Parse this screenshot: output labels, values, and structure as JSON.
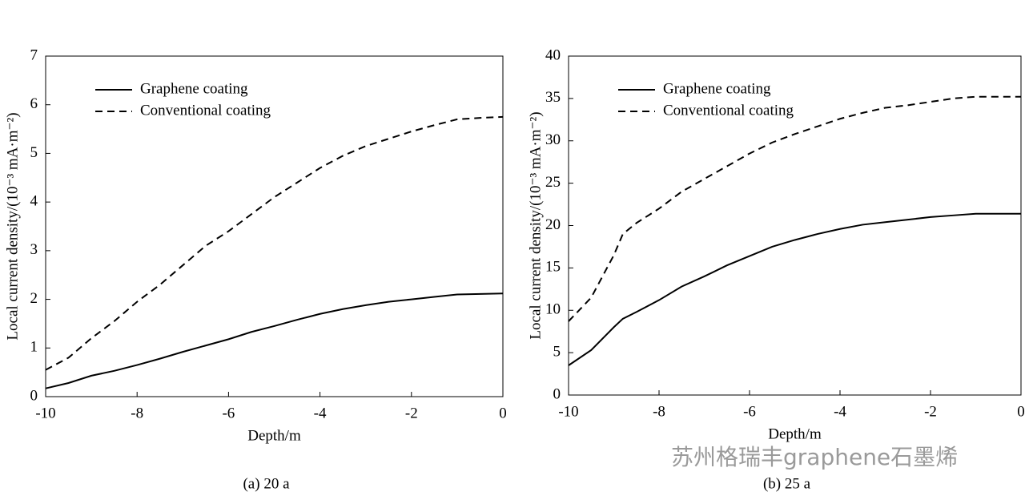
{
  "chart_data": [
    {
      "type": "line",
      "caption": "(a) 20 a",
      "xlabel": "Depth/m",
      "ylabel": "Local current density/(10⁻³ mA·m⁻²)",
      "xlim": [
        -10,
        0
      ],
      "xticks": [
        -10,
        -8,
        -6,
        -4,
        -2,
        0
      ],
      "ylim": [
        0,
        7
      ],
      "yticks": [
        0,
        1,
        2,
        3,
        4,
        5,
        6,
        7
      ],
      "x": [
        -10,
        -9.5,
        -9,
        -8.5,
        -8,
        -7.5,
        -7,
        -6.5,
        -6,
        -5.5,
        -5,
        -4.5,
        -4,
        -3.5,
        -3,
        -2.5,
        -2,
        -1.5,
        -1,
        -0.5,
        0
      ],
      "series": [
        {
          "name": "Graphene coating",
          "color": "#000000",
          "dash": false,
          "values": [
            0.17,
            0.28,
            0.43,
            0.53,
            0.65,
            0.78,
            0.92,
            1.05,
            1.18,
            1.33,
            1.45,
            1.58,
            1.7,
            1.8,
            1.88,
            1.95,
            2.0,
            2.05,
            2.1,
            2.11,
            2.12
          ]
        },
        {
          "name": "Conventional coating",
          "color": "#000000",
          "dash": true,
          "values": [
            0.55,
            0.8,
            1.2,
            1.55,
            1.95,
            2.3,
            2.7,
            3.1,
            3.4,
            3.75,
            4.1,
            4.4,
            4.7,
            4.95,
            5.15,
            5.3,
            5.45,
            5.58,
            5.7,
            5.73,
            5.75
          ]
        }
      ]
    },
    {
      "type": "line",
      "caption": "(b) 25 a",
      "xlabel": "Depth/m",
      "ylabel": "Local current density/(10⁻³ mA·m⁻²)",
      "xlim": [
        -10,
        0
      ],
      "xticks": [
        -10,
        -8,
        -6,
        -4,
        -2,
        0
      ],
      "ylim": [
        0,
        40
      ],
      "yticks": [
        0,
        5,
        10,
        15,
        20,
        25,
        30,
        35,
        40
      ],
      "x": [
        -10,
        -9.5,
        -9,
        -8.8,
        -8.5,
        -8,
        -7.5,
        -7,
        -6.5,
        -6,
        -5.5,
        -5,
        -4.5,
        -4,
        -3.5,
        -3,
        -2.5,
        -2,
        -1.5,
        -1,
        -0.5,
        0
      ],
      "series": [
        {
          "name": "Graphene coating",
          "color": "#000000",
          "dash": false,
          "values": [
            3.5,
            5.3,
            8,
            9,
            9.8,
            11.2,
            12.8,
            14,
            15.3,
            16.4,
            17.5,
            18.3,
            19,
            19.6,
            20.1,
            20.4,
            20.7,
            21,
            21.2,
            21.4,
            21.4,
            21.4
          ]
        },
        {
          "name": "Conventional coating",
          "color": "#000000",
          "dash": true,
          "values": [
            8.7,
            11.5,
            16.5,
            19,
            20.3,
            22,
            24,
            25.5,
            27,
            28.5,
            29.8,
            30.8,
            31.7,
            32.6,
            33.3,
            33.9,
            34.2,
            34.6,
            35,
            35.2,
            35.2,
            35.2
          ]
        }
      ]
    }
  ],
  "watermark": "苏州格瑞丰graphene石墨烯"
}
